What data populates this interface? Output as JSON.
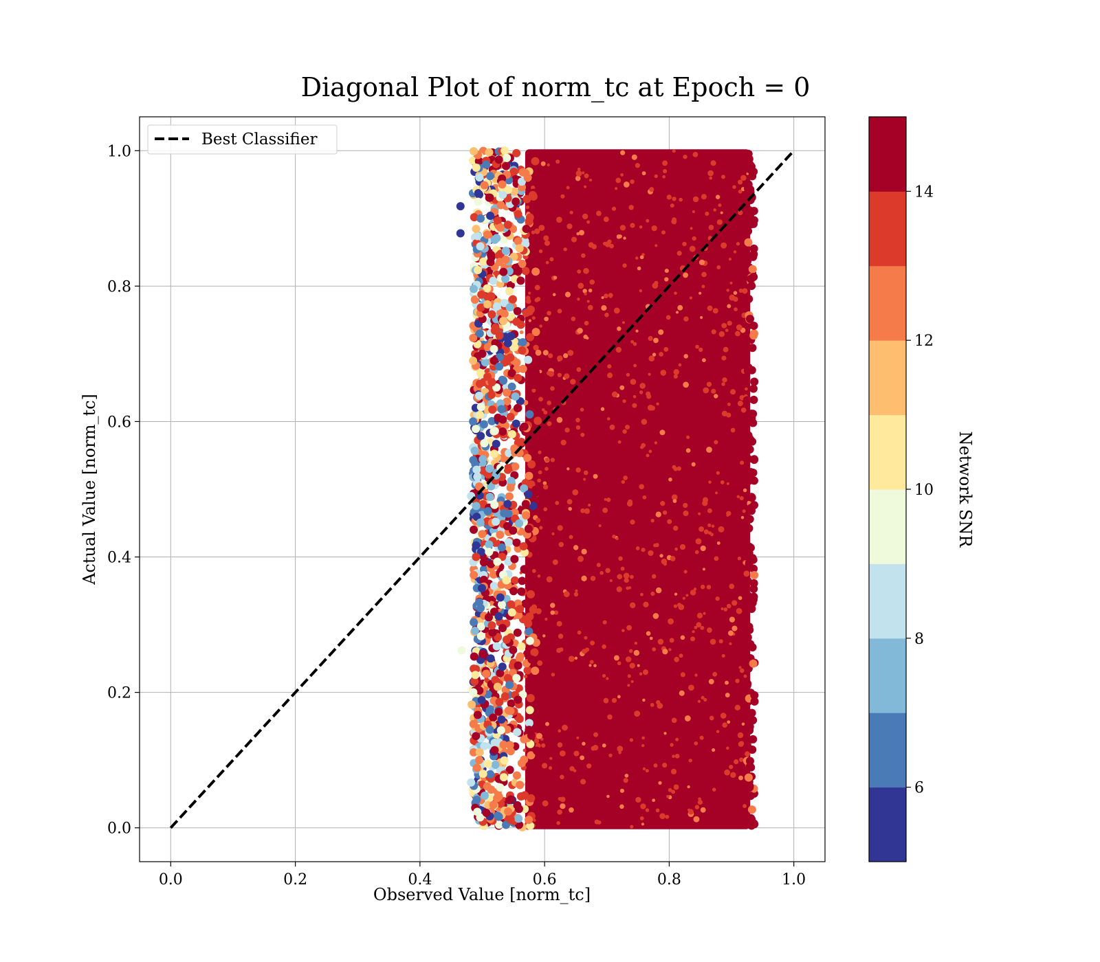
{
  "chart_data": {
    "type": "scatter",
    "title": "Diagonal Plot of norm_tc at Epoch = 0",
    "xlabel": "Observed Value [norm_tc]",
    "ylabel": "Actual Value [norm_tc]",
    "xlim": [
      -0.05,
      1.05
    ],
    "ylim": [
      -0.05,
      1.05
    ],
    "x_ticks": [
      "0.0",
      "0.2",
      "0.4",
      "0.6",
      "0.8",
      "1.0"
    ],
    "y_ticks": [
      "0.0",
      "0.2",
      "0.4",
      "0.6",
      "0.8",
      "1.0"
    ],
    "grid": true,
    "legend": {
      "placement": "upper-left",
      "entries": [
        "Best Classifier"
      ]
    },
    "reference_line": {
      "name": "Best Classifier",
      "style": "dashed",
      "color": "#000000",
      "x": [
        0.0,
        1.0
      ],
      "y": [
        0.0,
        1.0
      ]
    },
    "scatter": {
      "x_range_dense": [
        0.56,
        0.93
      ],
      "x_range_sparse": [
        0.46,
        0.56
      ],
      "y_range": [
        0.0,
        1.0
      ],
      "outliers": [
        {
          "x": 0.465,
          "y": 0.918,
          "snr": 5.5
        },
        {
          "x": 0.465,
          "y": 0.878,
          "snr": 5.5
        },
        {
          "x": 0.467,
          "y": 0.262,
          "snr": 9.5
        },
        {
          "x": 0.482,
          "y": 0.49,
          "snr": 8.5
        },
        {
          "x": 0.482,
          "y": 0.067,
          "snr": 8.5
        },
        {
          "x": 0.483,
          "y": 0.182,
          "snr": 11.5
        },
        {
          "x": 0.49,
          "y": 0.4,
          "snr": 13.5
        },
        {
          "x": 0.49,
          "y": 0.417,
          "snr": 5.5
        },
        {
          "x": 0.495,
          "y": 0.1,
          "snr": 12.5
        },
        {
          "x": 0.495,
          "y": 0.333,
          "snr": 6.5
        },
        {
          "x": 0.496,
          "y": 0.73,
          "snr": 6.5
        },
        {
          "x": 0.5,
          "y": 0.7,
          "snr": 15.0
        },
        {
          "x": 0.495,
          "y": 0.638,
          "snr": 8.5
        }
      ]
    },
    "colorbar": {
      "label": "Network SNR",
      "ticks": [
        "6",
        "8",
        "10",
        "12",
        "14"
      ],
      "min": 5,
      "max": 15,
      "levels": [
        {
          "from": 5,
          "to": 6,
          "color": "#313695"
        },
        {
          "from": 6,
          "to": 7,
          "color": "#4a7bb7"
        },
        {
          "from": 7,
          "to": 8,
          "color": "#83b9d8"
        },
        {
          "from": 8,
          "to": 9,
          "color": "#c2e3ee"
        },
        {
          "from": 9,
          "to": 10,
          "color": "#eff9db"
        },
        {
          "from": 10,
          "to": 11,
          "color": "#fee99d"
        },
        {
          "from": 11,
          "to": 12,
          "color": "#fdbf6f"
        },
        {
          "from": 12,
          "to": 13,
          "color": "#f57b4b"
        },
        {
          "from": 13,
          "to": 14,
          "color": "#dc3b2c"
        },
        {
          "from": 14,
          "to": 15,
          "color": "#a50026"
        }
      ]
    }
  }
}
